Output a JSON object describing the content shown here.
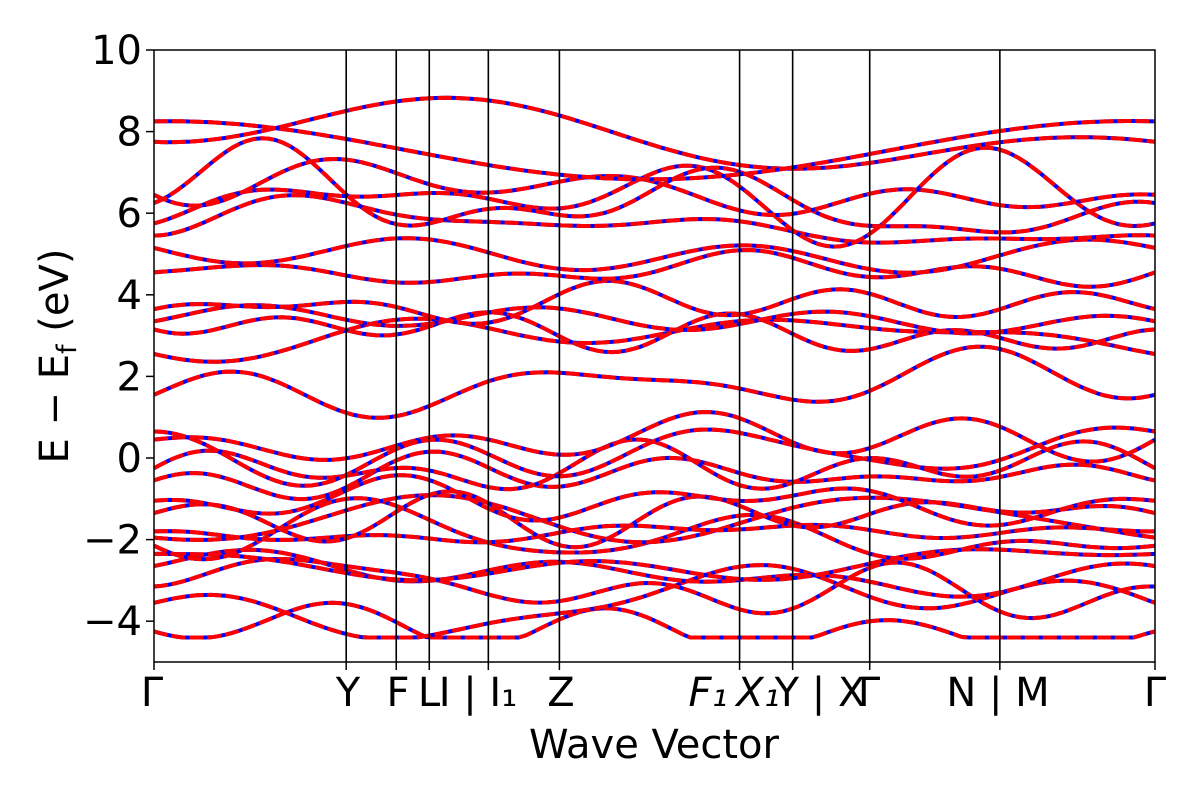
{
  "chart_data": {
    "type": "line",
    "title": "",
    "xlabel": "Wave Vector",
    "ylabel": "E − E",
    "ylabel_subscript": "f",
    "ylabel_unit": " (eV)",
    "ylim": [
      -5,
      10
    ],
    "yticks": [
      -4,
      -2,
      0,
      2,
      4,
      6,
      8,
      10
    ],
    "ytick_labels": [
      "−4",
      "−2",
      "0",
      "2",
      "4",
      "6",
      "8",
      "10"
    ],
    "xlim": [
      0,
      1
    ],
    "high_symmetry_points": [
      {
        "label": "Γ",
        "x": 0.0
      },
      {
        "label": "Y",
        "x": 0.192
      },
      {
        "label": "F",
        "x": 0.242
      },
      {
        "label": "L",
        "x": 0.275
      },
      {
        "label": "I | ",
        "x": 0.334,
        "sub_label": "I",
        "sub_index": "1"
      },
      {
        "label": "Z",
        "x": 0.405
      },
      {
        "label": "F",
        "x": 0.585,
        "sub_index": "1"
      },
      {
        "label": "X",
        "x": 0.585,
        "sub_index": "1",
        "tail": "Y | X"
      },
      {
        "label": "Γ",
        "x": 0.715
      },
      {
        "label": "N | M",
        "x": 0.845
      },
      {
        "label": "Γ",
        "x": 1.0
      }
    ],
    "xtick_labels_display": [
      "Γ",
      "Y",
      "F",
      "L",
      "I | I₁",
      "Z",
      "F₁",
      "X₁",
      "Y | X",
      "Γ",
      "N | M",
      "Γ"
    ],
    "series": [
      {
        "color": "#0000ff",
        "style": "solid"
      },
      {
        "color": "#ff0000",
        "style": "dashed"
      }
    ],
    "bands_energy_at_gamma": [
      -4.25,
      -3.55,
      -3.15,
      -2.65,
      -2.35,
      -2.15,
      -1.95,
      -1.8,
      -1.35,
      -1.05,
      -0.55,
      -0.25,
      0.45,
      0.65,
      1.55,
      2.55,
      3.15,
      3.35,
      3.65,
      4.55,
      5.15,
      5.45,
      5.75,
      6.25,
      6.45,
      7.75,
      8.25
    ],
    "grid": false,
    "legend": "none"
  }
}
